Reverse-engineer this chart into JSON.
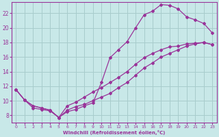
{
  "xlabel": "Windchill (Refroidissement éolien,°C)",
  "bg_color": "#c8e8e8",
  "grid_color": "#a8cccc",
  "line_color": "#993399",
  "xlim": [
    -0.5,
    23.5
  ],
  "ylim": [
    7.0,
    23.5
  ],
  "xticks": [
    0,
    1,
    2,
    3,
    4,
    5,
    6,
    7,
    8,
    9,
    10,
    11,
    12,
    13,
    14,
    15,
    16,
    17,
    18,
    19,
    20,
    21,
    22,
    23
  ],
  "yticks": [
    8,
    10,
    12,
    14,
    16,
    18,
    20,
    22
  ],
  "curve1_x": [
    0,
    1,
    2,
    3,
    4,
    5,
    6,
    7,
    8,
    9,
    10,
    11,
    12,
    13,
    14,
    15,
    16,
    17,
    18,
    19,
    20,
    21,
    22,
    23
  ],
  "curve1_y": [
    11.5,
    10.1,
    9.0,
    8.8,
    8.6,
    7.7,
    8.5,
    8.8,
    9.3,
    9.7,
    12.5,
    15.9,
    17.0,
    18.1,
    20.0,
    21.8,
    22.3,
    23.2,
    23.1,
    22.6,
    21.5,
    21.1,
    20.6,
    19.3
  ],
  "curve2_x": [
    0,
    1,
    2,
    3,
    4,
    5,
    6,
    7,
    8,
    9,
    10,
    11,
    12,
    13,
    14,
    15,
    16,
    17,
    18,
    19,
    20,
    21,
    22,
    23
  ],
  "curve2_y": [
    11.5,
    10.1,
    9.3,
    9.0,
    8.7,
    7.7,
    8.7,
    9.2,
    9.5,
    10.0,
    10.5,
    11.0,
    11.8,
    12.5,
    13.5,
    14.5,
    15.2,
    16.0,
    16.5,
    17.0,
    17.5,
    17.8,
    18.0,
    17.7
  ],
  "curve3_x": [
    0,
    1,
    2,
    3,
    4,
    5,
    6,
    7,
    8,
    9,
    10,
    11,
    12,
    13,
    14,
    15,
    16,
    17,
    18,
    19,
    20,
    21,
    22,
    23
  ],
  "curve3_y": [
    11.5,
    10.1,
    9.3,
    9.0,
    8.7,
    7.7,
    9.3,
    9.8,
    10.5,
    11.2,
    11.8,
    12.5,
    13.2,
    14.0,
    15.0,
    15.9,
    16.5,
    17.0,
    17.4,
    17.5,
    17.8,
    17.9,
    18.0,
    17.7
  ]
}
